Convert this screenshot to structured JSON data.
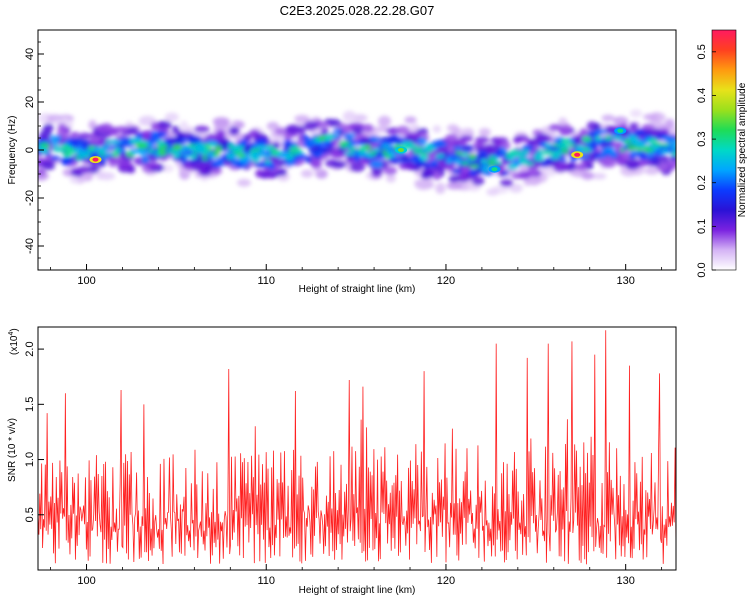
{
  "figure_title": "C2E3.2025.028.22.28.G07",
  "chart_data": [
    {
      "type": "heatmap",
      "xlabel": "Height of straight line (km)",
      "ylabel": "Frequency (Hz)",
      "xlim": [
        97.3,
        132.8
      ],
      "ylim": [
        -50,
        50
      ],
      "x_ticks": [
        100,
        110,
        120,
        130
      ],
      "y_ticks": [
        -40,
        -20,
        0,
        20,
        40
      ],
      "colorbar": {
        "label": "Normalized spectral amplitude",
        "range": [
          0,
          0.55
        ],
        "ticks": [
          "0.0",
          "0.1",
          "0.2",
          "0.3",
          "0.4",
          "0.5"
        ],
        "colormap": [
          "#ffffff",
          "#d4b3f5",
          "#7a22e0",
          "#2a12d6",
          "#0b3cff",
          "#00a6ff",
          "#00d9c6",
          "#1fdc56",
          "#9be01c",
          "#e8e21a",
          "#ff9a10",
          "#ff4020",
          "#ff1a60"
        ]
      },
      "band_center_hz": [
        [
          97.5,
          1
        ],
        [
          100,
          -1
        ],
        [
          102,
          1
        ],
        [
          104,
          1.5
        ],
        [
          106,
          0
        ],
        [
          108,
          -1
        ],
        [
          110,
          -2
        ],
        [
          112,
          1
        ],
        [
          114,
          3
        ],
        [
          116,
          -1
        ],
        [
          118,
          0
        ],
        [
          120,
          -3
        ],
        [
          122,
          -5
        ],
        [
          124,
          -4
        ],
        [
          126,
          0
        ],
        [
          128,
          2
        ],
        [
          130,
          3
        ],
        [
          132.8,
          0
        ]
      ],
      "band_halfwidth_hz": 9,
      "peaks": [
        {
          "x": 100.5,
          "y": -4,
          "value": 0.55
        },
        {
          "x": 117.5,
          "y": 0,
          "value": 0.35
        },
        {
          "x": 127.3,
          "y": -2,
          "value": 0.55
        },
        {
          "x": 122.7,
          "y": -8,
          "value": 0.3
        },
        {
          "x": 129.7,
          "y": 8,
          "value": 0.3
        }
      ],
      "grid": false
    },
    {
      "type": "line",
      "xlabel": "Height of straight line (km)",
      "ylabel": "SNR (10 * v/v)",
      "y_multiplier": "(x10",
      "y_multiplier_exp": "4",
      "y_multiplier_close": ")",
      "xlim": [
        97.3,
        132.8
      ],
      "ylim": [
        0,
        2.2
      ],
      "x_ticks": [
        100,
        110,
        120,
        130
      ],
      "y_ticks": [
        "0.5",
        "1.0",
        "1.5",
        "2.0"
      ],
      "series": [
        {
          "color": "#ff2020",
          "x_start": 97.3,
          "x_end": 132.8,
          "n_samples": 700,
          "typical_range": [
            0.05,
            1.0
          ],
          "max_value": 2.17,
          "spikes": [
            {
              "x": 97.8,
              "y": 1.42
            },
            {
              "x": 98.8,
              "y": 1.6
            },
            {
              "x": 101.9,
              "y": 1.63
            },
            {
              "x": 103.2,
              "y": 1.5
            },
            {
              "x": 107.9,
              "y": 1.82
            },
            {
              "x": 111.6,
              "y": 1.62
            },
            {
              "x": 114.6,
              "y": 1.72
            },
            {
              "x": 115.4,
              "y": 1.66
            },
            {
              "x": 118.8,
              "y": 1.8
            },
            {
              "x": 122.8,
              "y": 2.05
            },
            {
              "x": 124.5,
              "y": 1.92
            },
            {
              "x": 125.7,
              "y": 2.05
            },
            {
              "x": 127.0,
              "y": 2.07
            },
            {
              "x": 128.3,
              "y": 1.95
            },
            {
              "x": 128.9,
              "y": 2.17
            },
            {
              "x": 130.2,
              "y": 1.85
            },
            {
              "x": 131.9,
              "y": 1.78
            }
          ]
        }
      ],
      "grid": false
    }
  ]
}
